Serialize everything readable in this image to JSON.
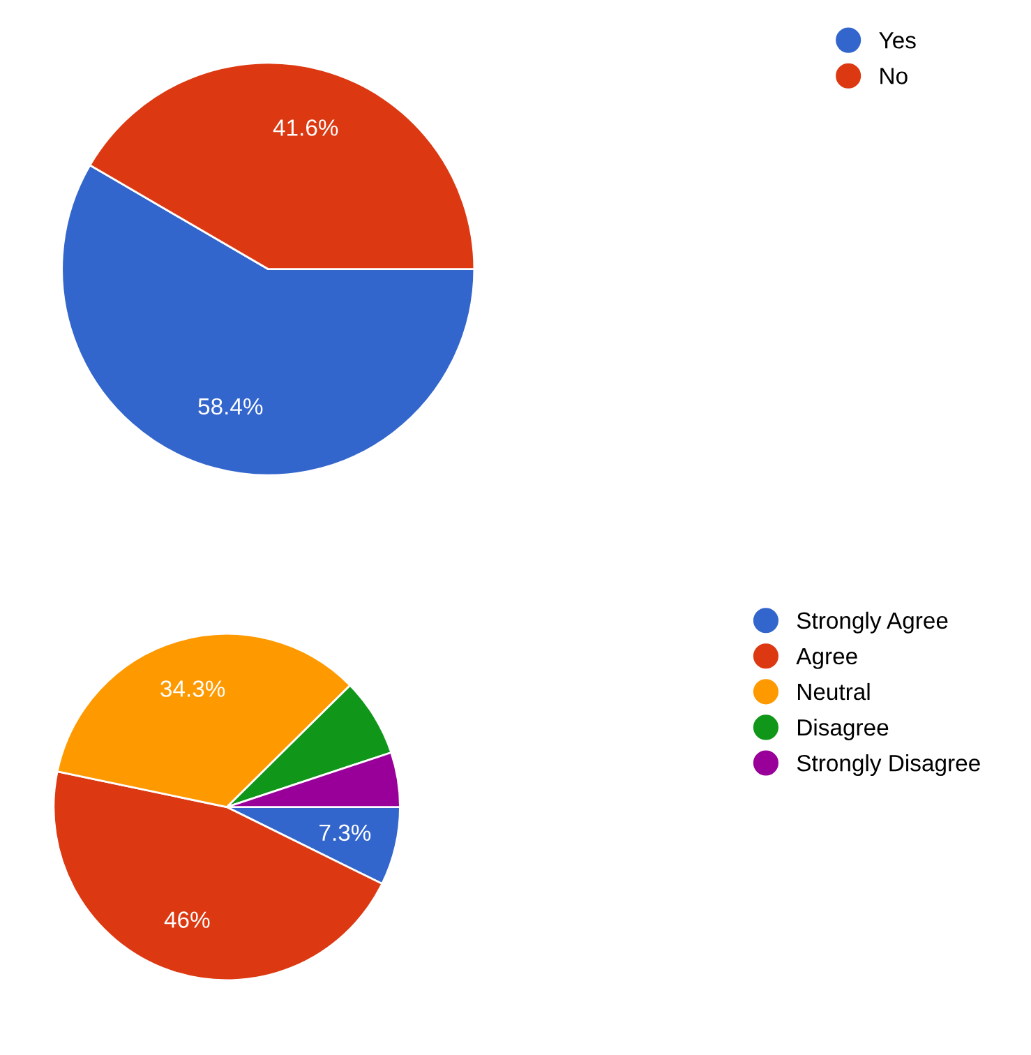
{
  "chart_data": [
    {
      "type": "pie",
      "categories": [
        "Yes",
        "No"
      ],
      "values": [
        58.4,
        41.6
      ],
      "colors": [
        "#3366cc",
        "#dc3912"
      ],
      "value_labels": [
        "58.4%",
        "41.6%"
      ],
      "legend": "top right"
    },
    {
      "type": "pie",
      "categories": [
        "Strongly Agree",
        "Agree",
        "Neutral",
        "Disagree",
        "Strongly Disagree"
      ],
      "values": [
        7.3,
        46,
        34.3,
        7.3,
        5.1
      ],
      "colors": [
        "#3366cc",
        "#dc3912",
        "#ff9900",
        "#109618",
        "#990099"
      ],
      "value_labels": [
        "7.3%",
        "46%",
        "34.3%",
        null,
        null
      ],
      "legend": "right"
    }
  ]
}
